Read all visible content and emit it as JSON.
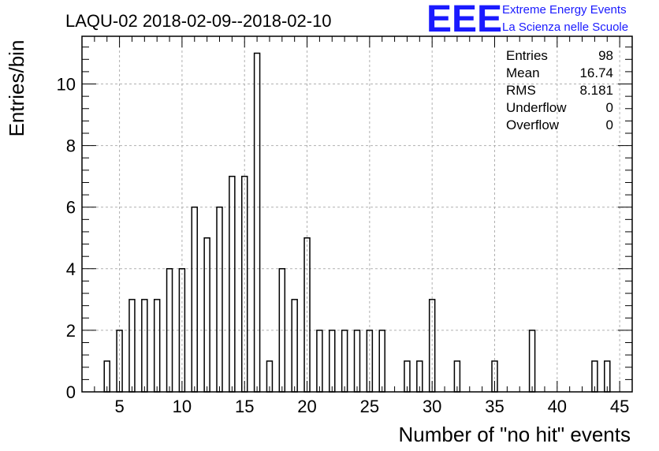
{
  "chart_data": {
    "type": "bar",
    "title": "LAQU-02 2018-02-09--2018-02-10",
    "xlabel": "Number of \"no hit\" events",
    "ylabel": "Entries/bin",
    "xlim": [
      2,
      46
    ],
    "ylim": [
      0,
      11.55
    ],
    "bin_width": 0.44,
    "xticks": [
      5,
      10,
      15,
      20,
      25,
      30,
      35,
      40,
      45
    ],
    "yticks": [
      0,
      2,
      4,
      6,
      8,
      10
    ],
    "grid": true,
    "bins": [
      {
        "x": 4,
        "value": 1
      },
      {
        "x": 5,
        "value": 2
      },
      {
        "x": 6,
        "value": 3
      },
      {
        "x": 7,
        "value": 3
      },
      {
        "x": 8,
        "value": 3
      },
      {
        "x": 9,
        "value": 4
      },
      {
        "x": 10,
        "value": 4
      },
      {
        "x": 11,
        "value": 6
      },
      {
        "x": 12,
        "value": 5
      },
      {
        "x": 13,
        "value": 6
      },
      {
        "x": 14,
        "value": 7
      },
      {
        "x": 15,
        "value": 7
      },
      {
        "x": 16,
        "value": 11
      },
      {
        "x": 17,
        "value": 1
      },
      {
        "x": 18,
        "value": 4
      },
      {
        "x": 19,
        "value": 3
      },
      {
        "x": 20,
        "value": 5
      },
      {
        "x": 21,
        "value": 2
      },
      {
        "x": 22,
        "value": 2
      },
      {
        "x": 23,
        "value": 2
      },
      {
        "x": 24,
        "value": 2
      },
      {
        "x": 25,
        "value": 2
      },
      {
        "x": 26,
        "value": 2
      },
      {
        "x": 28,
        "value": 1
      },
      {
        "x": 29,
        "value": 1
      },
      {
        "x": 30,
        "value": 3
      },
      {
        "x": 32,
        "value": 1
      },
      {
        "x": 35,
        "value": 1
      },
      {
        "x": 38,
        "value": 2
      },
      {
        "x": 43,
        "value": 1
      },
      {
        "x": 44,
        "value": 1
      }
    ]
  },
  "stats": [
    {
      "label": "Entries",
      "value": "98"
    },
    {
      "label": "Mean",
      "value": "16.74"
    },
    {
      "label": "RMS",
      "value": "8.181"
    },
    {
      "label": "Underflow",
      "value": "0"
    },
    {
      "label": "Overflow",
      "value": "0"
    }
  ],
  "logo": {
    "mark": "EEE",
    "line1": "Extreme Energy Events",
    "line2": "La Scienza nelle Scuole",
    "color": "#1a1aff"
  }
}
